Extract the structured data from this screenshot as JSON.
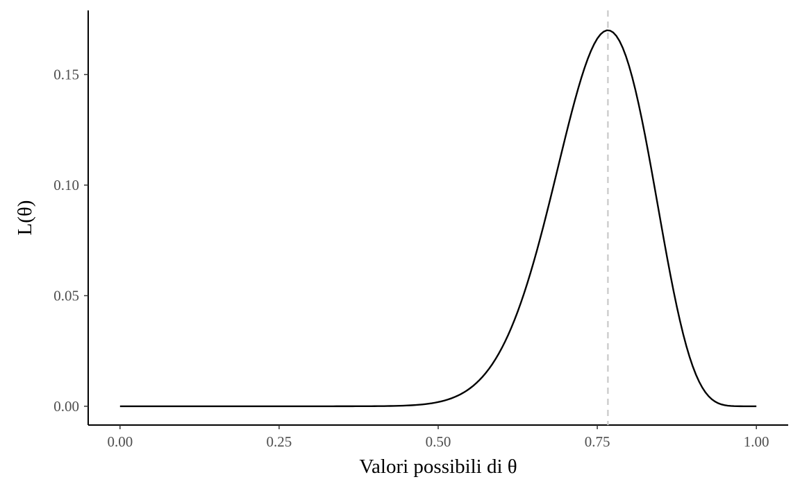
{
  "chart_data": {
    "type": "line",
    "title": "",
    "xlabel": "Valori possibili di θ",
    "ylabel": "L(θ)",
    "xlim": [
      -0.05,
      1.05
    ],
    "ylim": [
      -0.0085,
      0.179
    ],
    "grid": false,
    "legend": "none",
    "x_ticks": [
      0.0,
      0.25,
      0.5,
      0.75,
      1.0
    ],
    "x_tick_labels": [
      "0.00",
      "0.25",
      "0.50",
      "0.75",
      "1.00"
    ],
    "y_ticks": [
      0.0,
      0.05,
      0.1,
      0.15
    ],
    "y_tick_labels": [
      "0.00",
      "0.05",
      "0.10",
      "0.15"
    ],
    "series": [
      {
        "type": "binomial-likelihood",
        "n": 30,
        "k": 23,
        "x_range": [
          0,
          1
        ],
        "color": "#000000"
      }
    ],
    "vline": {
      "x": 0.7667,
      "color": "#cccccc",
      "style": "dashed"
    }
  }
}
